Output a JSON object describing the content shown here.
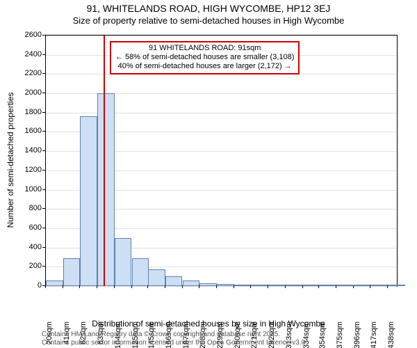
{
  "title_main": "91, WHITELANDS ROAD, HIGH WYCOMBE, HP12 3EJ",
  "title_sub": "Size of property relative to semi-detached houses in High Wycombe",
  "y_axis_label": "Number of semi-detached properties",
  "x_axis_label": "Distribution of semi-detached houses by size in High Wycombe",
  "attribution_line1": "Contains HM Land Registry data © Crown copyright and database right 2025.",
  "attribution_line2": "Contains public sector information licensed under the Open Government Licence v3.0.",
  "chart": {
    "type": "histogram",
    "background_color": "#ffffff",
    "grid_color": "#e0e0e0",
    "axis_color": "#000000",
    "bar_fill": "#cddff5",
    "bar_border": "#6080b0",
    "marker_color": "#d00000",
    "marker_x_sqm": 91,
    "ylim": [
      0,
      2600
    ],
    "ytick_step": 200,
    "x_min": 20,
    "x_max": 449,
    "x_ticks": [
      20,
      41,
      62,
      83,
      104,
      125,
      145,
      166,
      187,
      208,
      229,
      250,
      271,
      292,
      313,
      334,
      354,
      375,
      396,
      417,
      438
    ],
    "bar_width_sqm": 20.9,
    "bars": [
      {
        "x": 20,
        "value": 60
      },
      {
        "x": 41,
        "value": 290
      },
      {
        "x": 62,
        "value": 1760
      },
      {
        "x": 83,
        "value": 2000
      },
      {
        "x": 104,
        "value": 500
      },
      {
        "x": 125,
        "value": 290
      },
      {
        "x": 145,
        "value": 170
      },
      {
        "x": 166,
        "value": 100
      },
      {
        "x": 187,
        "value": 60
      },
      {
        "x": 208,
        "value": 30
      },
      {
        "x": 229,
        "value": 25
      },
      {
        "x": 250,
        "value": 12
      },
      {
        "x": 271,
        "value": 8
      },
      {
        "x": 292,
        "value": 5
      },
      {
        "x": 313,
        "value": 3
      },
      {
        "x": 334,
        "value": 2
      },
      {
        "x": 354,
        "value": 2
      },
      {
        "x": 375,
        "value": 1
      },
      {
        "x": 396,
        "value": 1
      },
      {
        "x": 417,
        "value": 1
      },
      {
        "x": 438,
        "value": 1
      }
    ],
    "annotation": {
      "line1": "91 WHITELANDS ROAD: 91sqm",
      "line2": "← 58% of semi-detached houses are smaller (3,108)",
      "line3": "40% of semi-detached houses are larger (2,172) →",
      "border_color": "#d00000",
      "background": "#ffffff",
      "fontsize": 11
    }
  }
}
